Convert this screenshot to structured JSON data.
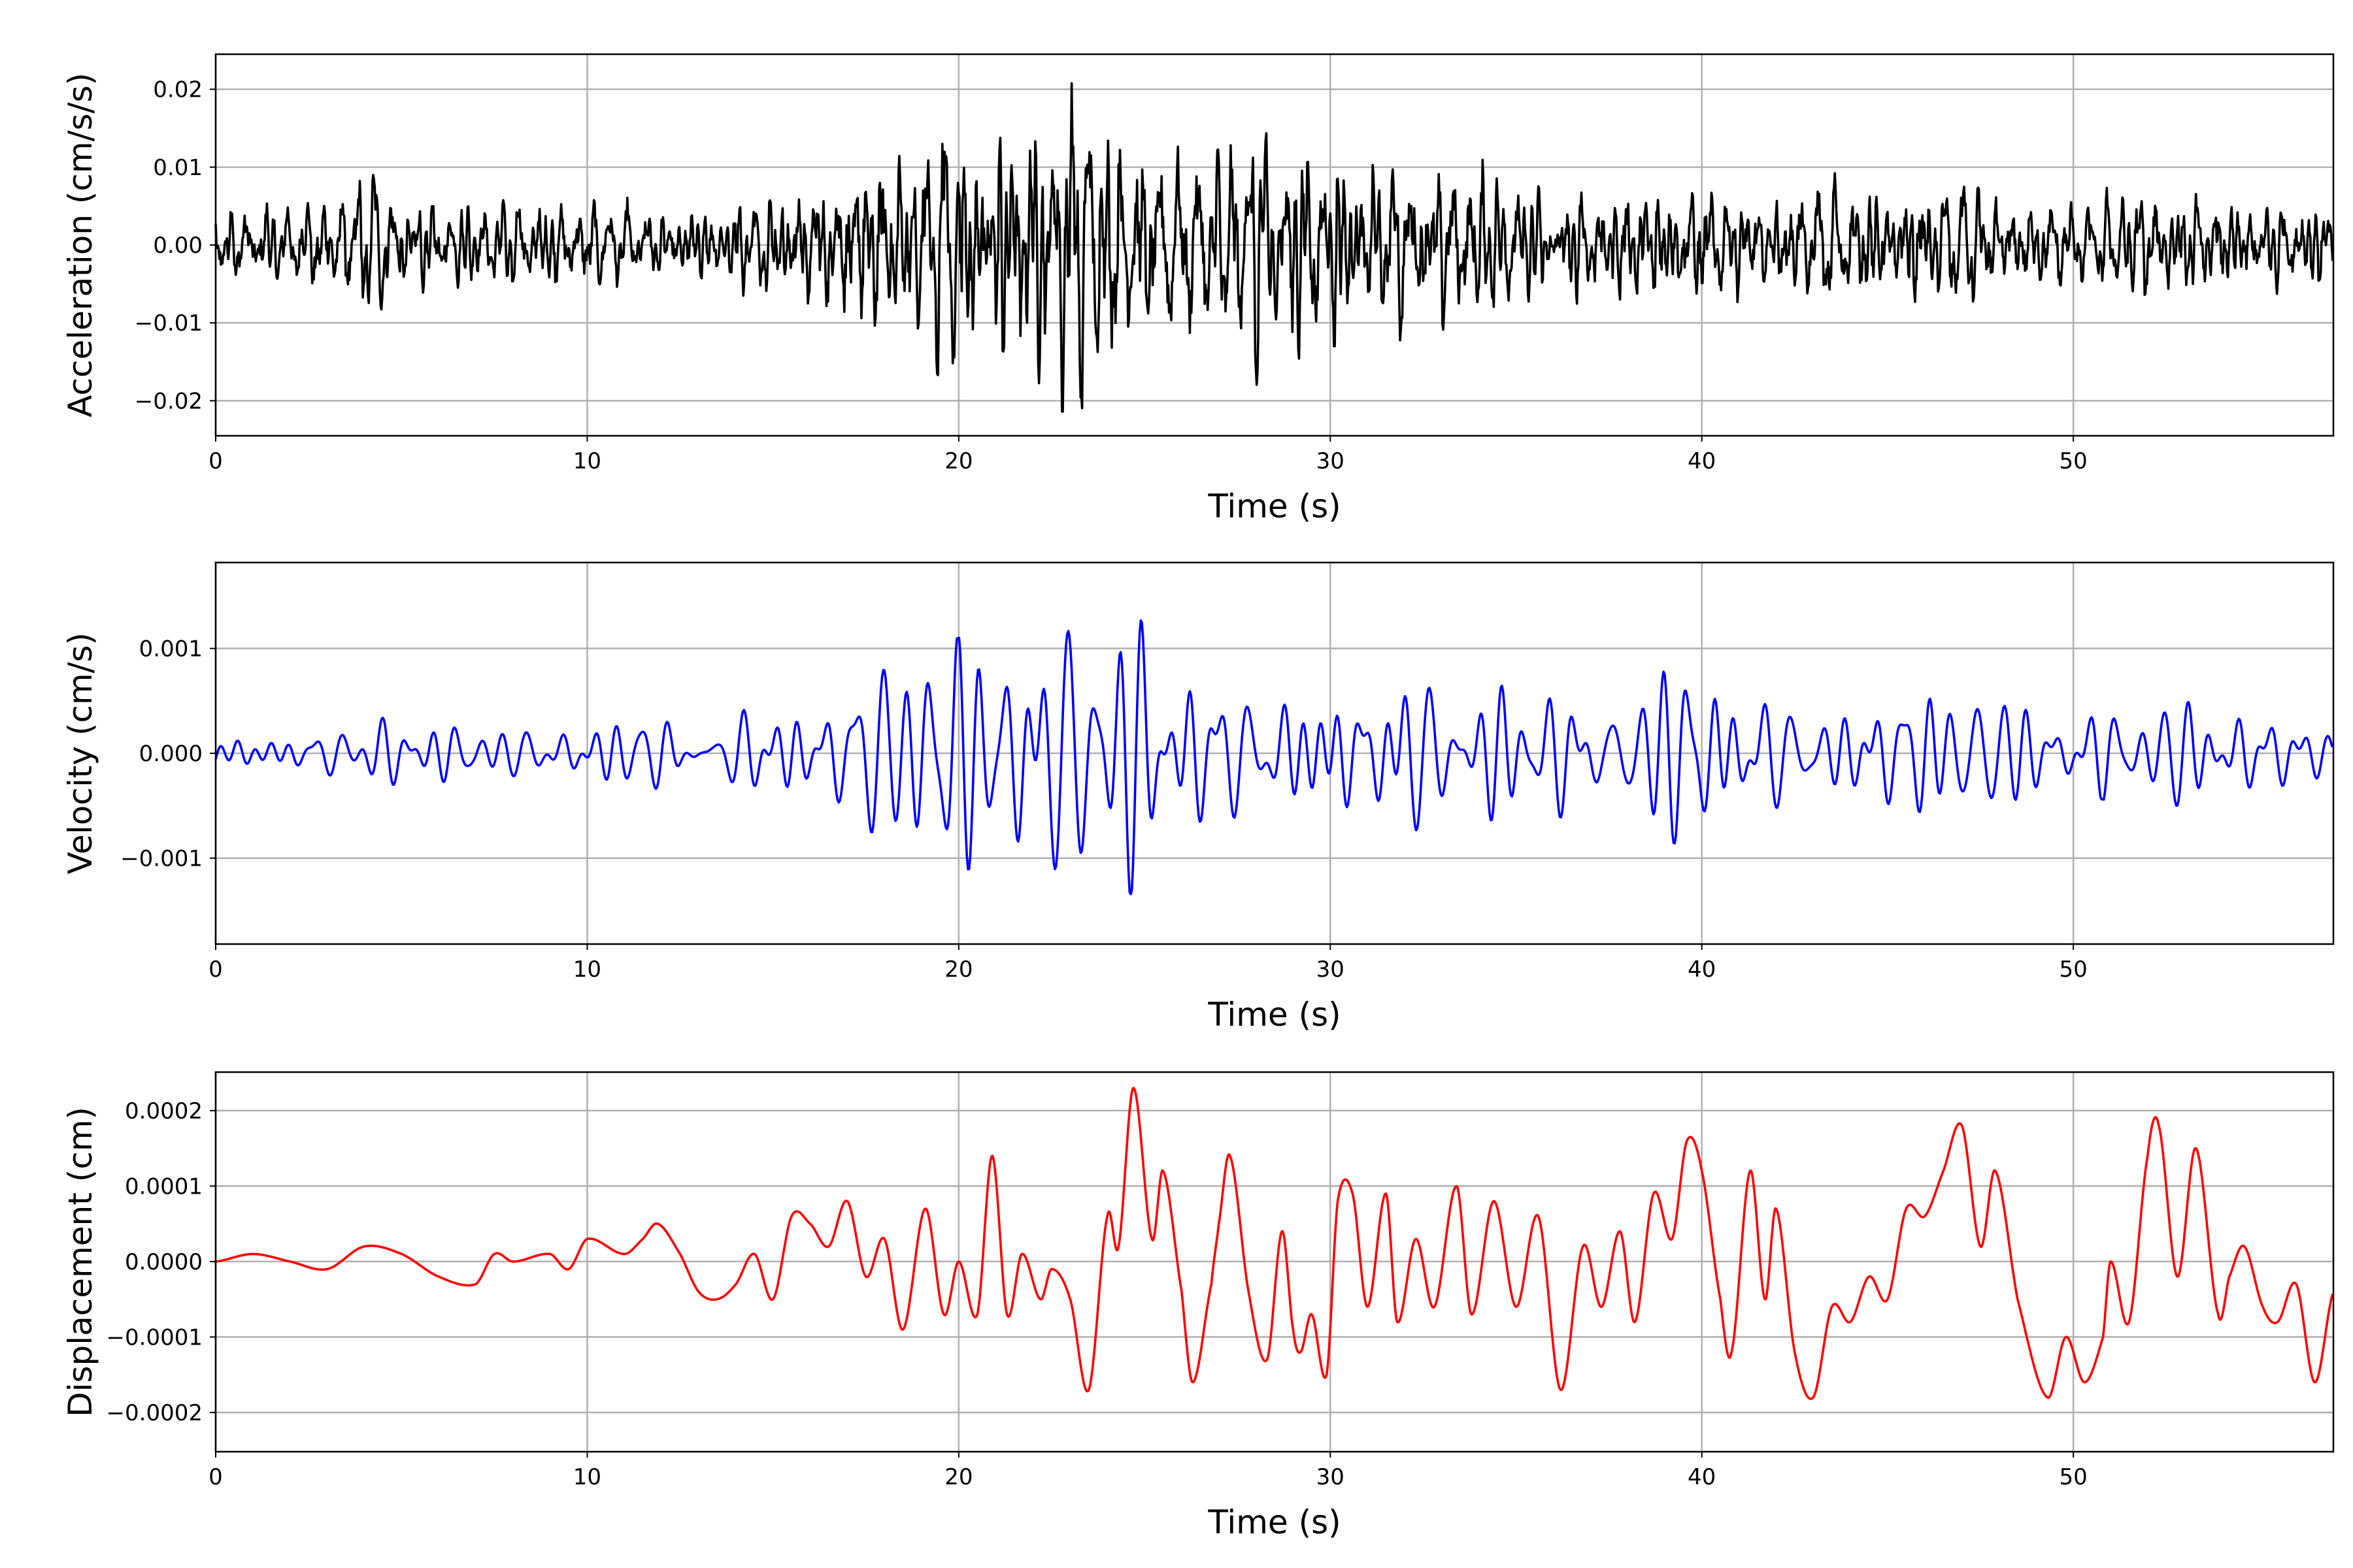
{
  "chart_data": [
    {
      "type": "line",
      "title": "",
      "xlabel": "Time (s)",
      "ylabel": "Acceleration (cm/s/s)",
      "xlim": [
        0,
        57
      ],
      "ylim": [
        -0.0245,
        0.0245
      ],
      "xticks": [
        0,
        10,
        20,
        30,
        40,
        50
      ],
      "xtick_labels": [
        "0",
        "10",
        "20",
        "30",
        "40",
        "50"
      ],
      "yticks": [
        -0.02,
        -0.01,
        0.0,
        0.01,
        0.02
      ],
      "ytick_labels": [
        "−0.02",
        "−0.01",
        "0.00",
        "0.01",
        "0.02"
      ],
      "grid": true,
      "color": "#000000",
      "series": [
        {
          "name": "acceleration",
          "note_amplitude_envelope_t": [
            0,
            2,
            4,
            6,
            8,
            10,
            12,
            14,
            16,
            17,
            18,
            20,
            22,
            24,
            26,
            28,
            30,
            32,
            34,
            36,
            38,
            40,
            42,
            44,
            46,
            48,
            50,
            52,
            54,
            56,
            57
          ],
          "amplitude_envelope": [
            0.006,
            0.007,
            0.011,
            0.006,
            0.006,
            0.008,
            0.006,
            0.006,
            0.011,
            0.017,
            0.018,
            0.02,
            0.021,
            0.022,
            0.016,
            0.018,
            0.013,
            0.013,
            0.014,
            0.008,
            0.01,
            0.009,
            0.01,
            0.009,
            0.009,
            0.008,
            0.007,
            0.008,
            0.007,
            0.006,
            0.006
          ]
        }
      ]
    },
    {
      "type": "line",
      "title": "",
      "xlabel": "Time (s)",
      "ylabel": "Velocity (cm/s)",
      "xlim": [
        0,
        57
      ],
      "ylim": [
        -0.00182,
        0.00182
      ],
      "xticks": [
        0,
        10,
        20,
        30,
        40,
        50
      ],
      "xtick_labels": [
        "0",
        "10",
        "20",
        "30",
        "40",
        "50"
      ],
      "yticks": [
        -0.001,
        0.0,
        0.001
      ],
      "ytick_labels": [
        "−0.001",
        "0.000",
        "0.001"
      ],
      "grid": true,
      "color": "#0000ff",
      "series": [
        {
          "name": "velocity",
          "note_amplitude_envelope_t": [
            0,
            2,
            4,
            6,
            8,
            10,
            12,
            14,
            16,
            18,
            20,
            22,
            24,
            26,
            28,
            30,
            32,
            34,
            36,
            38,
            40,
            42,
            44,
            46,
            48,
            50,
            52,
            54,
            56,
            57
          ],
          "amplitude_envelope": [
            0.0002,
            0.0003,
            0.00035,
            0.0003,
            0.00025,
            0.0003,
            0.00035,
            0.0004,
            0.00055,
            0.0009,
            0.0011,
            0.0012,
            0.0015,
            0.001,
            0.0009,
            0.0008,
            0.0009,
            0.0007,
            0.0006,
            0.0007,
            0.00095,
            0.0006,
            0.0005,
            0.0007,
            0.0005,
            0.0004,
            0.0005,
            0.0005,
            0.0004,
            0.0004
          ]
        }
      ]
    },
    {
      "type": "line",
      "title": "",
      "xlabel": "Time (s)",
      "ylabel": "Displacement (cm)",
      "xlim": [
        0,
        57
      ],
      "ylim": [
        -0.000252,
        0.000251
      ],
      "xticks": [
        0,
        10,
        20,
        30,
        40,
        50
      ],
      "xtick_labels": [
        "0",
        "10",
        "20",
        "30",
        "40",
        "50"
      ],
      "yticks": [
        -0.0002,
        -0.0001,
        0.0,
        0.0001,
        0.0002
      ],
      "ytick_labels": [
        "−0.0002",
        "−0.0001",
        "0.0000",
        "0.0001",
        "0.0002"
      ],
      "grid": true,
      "color": "#ff0000",
      "series": [
        {
          "name": "displacement",
          "unit_scale": 0.0001,
          "t": [
            0,
            1,
            2,
            3,
            4,
            5,
            6,
            7,
            7.5,
            8,
            9,
            9.5,
            10,
            11,
            11.5,
            11.9,
            12.5,
            13,
            13.5,
            14,
            14.5,
            15,
            15.5,
            16,
            16.5,
            17,
            17.5,
            18,
            18.5,
            19.1,
            19.6,
            20,
            20.5,
            20.9,
            21.3,
            21.7,
            22.2,
            22.5,
            23,
            23.5,
            24,
            24.3,
            24.7,
            25.2,
            25.5,
            26,
            26.3,
            26.8,
            27,
            27.3,
            27.8,
            28.3,
            28.7,
            29,
            29.2,
            29.5,
            29.9,
            30.2,
            30.6,
            31,
            31.5,
            31.8,
            32.3,
            32.8,
            33.4,
            33.8,
            34.4,
            35,
            35.6,
            36.2,
            36.8,
            37.3,
            37.8,
            38.2,
            38.7,
            39.2,
            39.6,
            40,
            40.5,
            40.8,
            41.3,
            41.7,
            42,
            42.5,
            43,
            43.5,
            44,
            44.5,
            45,
            45.5,
            46,
            46.5,
            47,
            47.5,
            47.9,
            48.5,
            49.3,
            49.8,
            50.3,
            50.8,
            51,
            51.5,
            52,
            52.3,
            52.8,
            53.3,
            53.9,
            54.2,
            54.6,
            55.1,
            55.5,
            56,
            56.5,
            57
          ],
          "values": [
            0,
            0.1,
            0,
            -0.1,
            0.2,
            0.1,
            -0.2,
            -0.3,
            0.1,
            0,
            0.1,
            -0.1,
            0.3,
            0.1,
            0.3,
            0.5,
            0.1,
            -0.4,
            -0.5,
            -0.3,
            0.1,
            -0.5,
            0.6,
            0.5,
            0.2,
            0.8,
            -0.2,
            0.3,
            -0.9,
            0.7,
            -0.7,
            0,
            -0.7,
            1.4,
            -0.7,
            0.1,
            -0.5,
            -0.1,
            -0.5,
            -1.7,
            0.6,
            0.2,
            2.3,
            0.3,
            1.2,
            -0.4,
            -1.6,
            -0.3,
            0.5,
            1.4,
            -0.4,
            -1.3,
            0.4,
            -0.9,
            -1.2,
            -0.7,
            -1.5,
            0.8,
            0.9,
            -0.6,
            0.9,
            -0.8,
            0.3,
            -0.6,
            1.0,
            -0.7,
            0.8,
            -0.6,
            0.6,
            -1.7,
            0.2,
            -0.6,
            0.4,
            -0.8,
            0.9,
            0.3,
            1.6,
            1.2,
            -0.5,
            -1.2,
            1.2,
            -0.5,
            0.7,
            -1.2,
            -1.8,
            -0.6,
            -0.8,
            -0.2,
            -0.5,
            0.7,
            0.6,
            1.2,
            1.8,
            0.2,
            1.2,
            -0.5,
            -1.8,
            -1.0,
            -1.6,
            -1.0,
            0,
            -0.8,
            1.4,
            1.8,
            -0.2,
            1.5,
            -0.7,
            -0.2,
            0.2,
            -0.6,
            -0.8,
            -0.3,
            -1.6,
            -0.4
          ]
        }
      ]
    }
  ]
}
